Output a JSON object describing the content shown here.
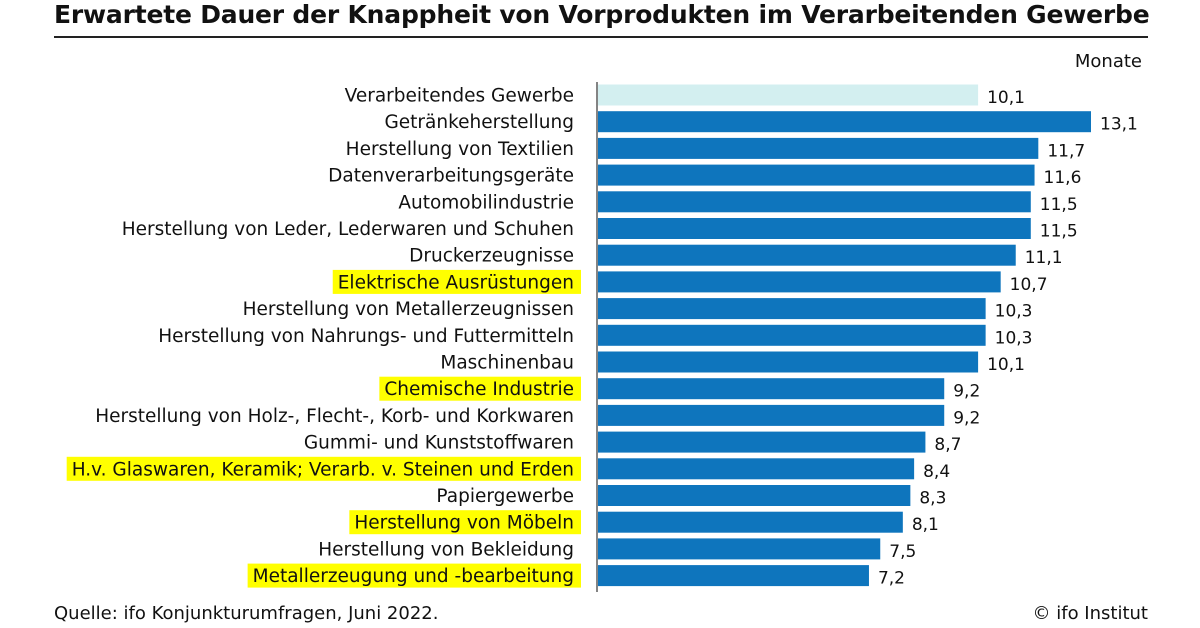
{
  "chart_data": {
    "type": "bar",
    "orientation": "horizontal",
    "title": "Erwartete Dauer der Knappheit von Vorprodukten im Verarbeitenden Gewerbe",
    "unit": "Monate",
    "colors": {
      "bar": "#0e75bd",
      "bar_highlight": "#d3eff0",
      "label_highlight": "#ffff00"
    },
    "categories": [
      "Verarbeitendes Gewerbe",
      "Getränkeherstellung",
      "Herstellung von Textilien",
      "Datenverarbeitungsgeräte",
      "Automobilindustrie",
      "Herstellung von Leder, Lederwaren und Schuhen",
      "Druckerzeugnisse",
      "Elektrische Ausrüstungen",
      "Herstellung von Metallerzeugnissen",
      "Herstellung von Nahrungs- und Futtermitteln",
      "Maschinenbau",
      "Chemische Industrie",
      "Herstellung von Holz-, Flecht-, Korb- und Korkwaren",
      "Gummi- und Kunststoffwaren",
      "H.v. Glaswaren, Keramik; Verarb. v. Steinen und Erden",
      "Papiergewerbe",
      "Herstellung von Möbeln",
      "Herstellung von Bekleidung",
      "Metallerzeugung und -bearbeitung"
    ],
    "values": [
      10.1,
      13.1,
      11.7,
      11.6,
      11.5,
      11.5,
      11.1,
      10.7,
      10.3,
      10.3,
      10.1,
      9.2,
      9.2,
      8.7,
      8.4,
      8.3,
      8.1,
      7.5,
      7.2
    ],
    "value_labels": [
      "10,1",
      "13,1",
      "11,7",
      "11,6",
      "11,5",
      "11,5",
      "11,1",
      "10,7",
      "10,3",
      "10,3",
      "10,1",
      "9,2",
      "9,2",
      "8,7",
      "8,4",
      "8,3",
      "8,1",
      "7,5",
      "7,2"
    ],
    "highlighted_bar": [
      true,
      false,
      false,
      false,
      false,
      false,
      false,
      false,
      false,
      false,
      false,
      false,
      false,
      false,
      false,
      false,
      false,
      false,
      false
    ],
    "highlighted_label": [
      false,
      false,
      false,
      false,
      false,
      false,
      false,
      true,
      false,
      false,
      false,
      true,
      false,
      false,
      true,
      false,
      true,
      false,
      true
    ],
    "xlim": [
      0,
      13.1
    ],
    "grid": false,
    "legend": "none"
  },
  "footer": {
    "source": "Quelle: ifo Konjunkturumfragen, Juni 2022.",
    "copyright": "© ifo Institut"
  }
}
